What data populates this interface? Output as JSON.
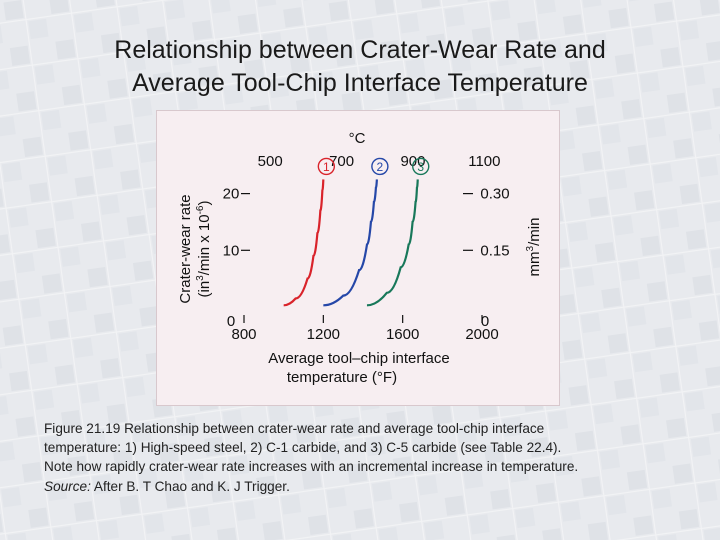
{
  "slide": {
    "title_line1": "Relationship between Crater-Wear Rate and",
    "title_line2": "Average Tool-Chip Interface Temperature"
  },
  "colors": {
    "curve1": "#d9232b",
    "curve2": "#2547a8",
    "curve3": "#18785a",
    "frame": "#f7eef1"
  },
  "chart_data": {
    "type": "line",
    "top_axis": {
      "unit_label": "°C",
      "ticks": [
        "500",
        "700",
        "900",
        "1100"
      ]
    },
    "x": {
      "label_line1": "Average tool–chip interface",
      "label_line2": "temperature (°F)",
      "ticks": [
        "800",
        "1200",
        "1600",
        "2000"
      ],
      "range": [
        800,
        2000
      ]
    },
    "y_left": {
      "label": "Crater-wear rate",
      "label2_prefix": "(in",
      "label2_sup1": "3",
      "label2_mid": "/min x 10",
      "label2_sup2": "-6",
      "label2_suffix": ")",
      "ticks": [
        "0",
        "10",
        "20"
      ],
      "range": [
        0,
        24
      ]
    },
    "y_right": {
      "label_prefix": "mm",
      "label_sup": "3",
      "label_suffix": "/min",
      "ticks": [
        "0",
        "0.15",
        "0.30"
      ],
      "range": [
        0,
        0.36
      ]
    },
    "series": [
      {
        "name": "1",
        "x": [
          1000,
          1060,
          1120,
          1150,
          1170,
          1185,
          1195,
          1200
        ],
        "y": [
          0.3,
          1.5,
          5,
          9,
          13,
          17,
          20.5,
          22.5
        ]
      },
      {
        "name": "2",
        "x": [
          1200,
          1300,
          1380,
          1420,
          1440,
          1455,
          1465,
          1470
        ],
        "y": [
          0.3,
          2,
          6.5,
          11,
          15,
          18.5,
          21,
          22.5
        ]
      },
      {
        "name": "3",
        "x": [
          1420,
          1520,
          1590,
          1630,
          1650,
          1665,
          1672,
          1676
        ],
        "y": [
          0.3,
          2.5,
          7,
          11,
          15,
          18.5,
          21,
          22.5
        ]
      }
    ]
  },
  "caption": {
    "line1": "Figure 21.19  Relationship between crater-wear rate and average tool-chip interface",
    "line2": "temperature:  1) High-speed steel, 2) C-1 carbide, and 3) C-5 carbide (see Table 22.4).",
    "line3": "Note how rapidly crater-wear rate increases with an incremental increase in temperature.",
    "source_label": "Source:",
    "source_text": "  After B. T Chao and K. J Trigger."
  }
}
